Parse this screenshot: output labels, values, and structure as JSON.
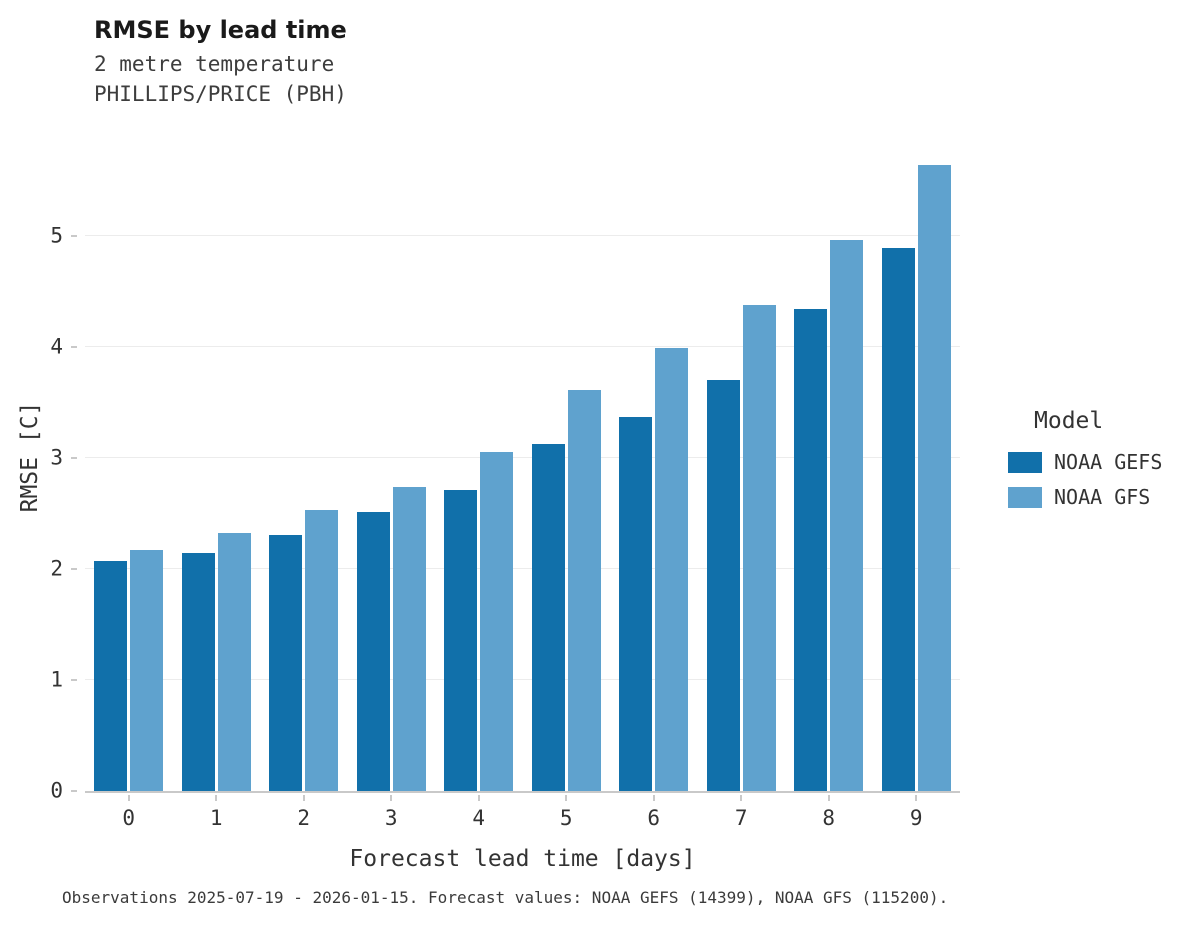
{
  "header": {
    "title": "RMSE by lead time",
    "subtitle_line1": "2 metre temperature",
    "subtitle_line2": "PHILLIPS/PRICE (PBH)"
  },
  "legend": {
    "title": "Model",
    "items": [
      {
        "label": "NOAA GEFS",
        "color": "#1170aa"
      },
      {
        "label": "NOAA GFS",
        "color": "#5fa2ce"
      }
    ]
  },
  "footer": {
    "text": "Observations 2025-07-19 - 2026-01-15. Forecast values: NOAA GEFS (14399), NOAA GFS (115200)."
  },
  "chart_data": {
    "type": "bar",
    "title": "RMSE by lead time",
    "subtitle": "2 metre temperature PHILLIPS/PRICE (PBH)",
    "xlabel": "Forecast lead time [days]",
    "ylabel": "RMSE [C]",
    "categories": [
      "0",
      "1",
      "2",
      "3",
      "4",
      "5",
      "6",
      "7",
      "8",
      "9"
    ],
    "series": [
      {
        "name": "NOAA GEFS",
        "color": "#1170aa",
        "values": [
          2.07,
          2.14,
          2.31,
          2.51,
          2.71,
          3.13,
          3.37,
          3.7,
          4.34,
          4.89
        ]
      },
      {
        "name": "NOAA GFS",
        "color": "#5fa2ce",
        "values": [
          2.17,
          2.32,
          2.53,
          2.74,
          3.05,
          3.61,
          3.99,
          4.38,
          4.96,
          5.64
        ]
      }
    ],
    "ylim": [
      0,
      6
    ],
    "yticks": [
      0,
      1,
      2,
      3,
      4,
      5
    ],
    "grid": true,
    "legend_position": "right",
    "legend_title": "Model"
  }
}
